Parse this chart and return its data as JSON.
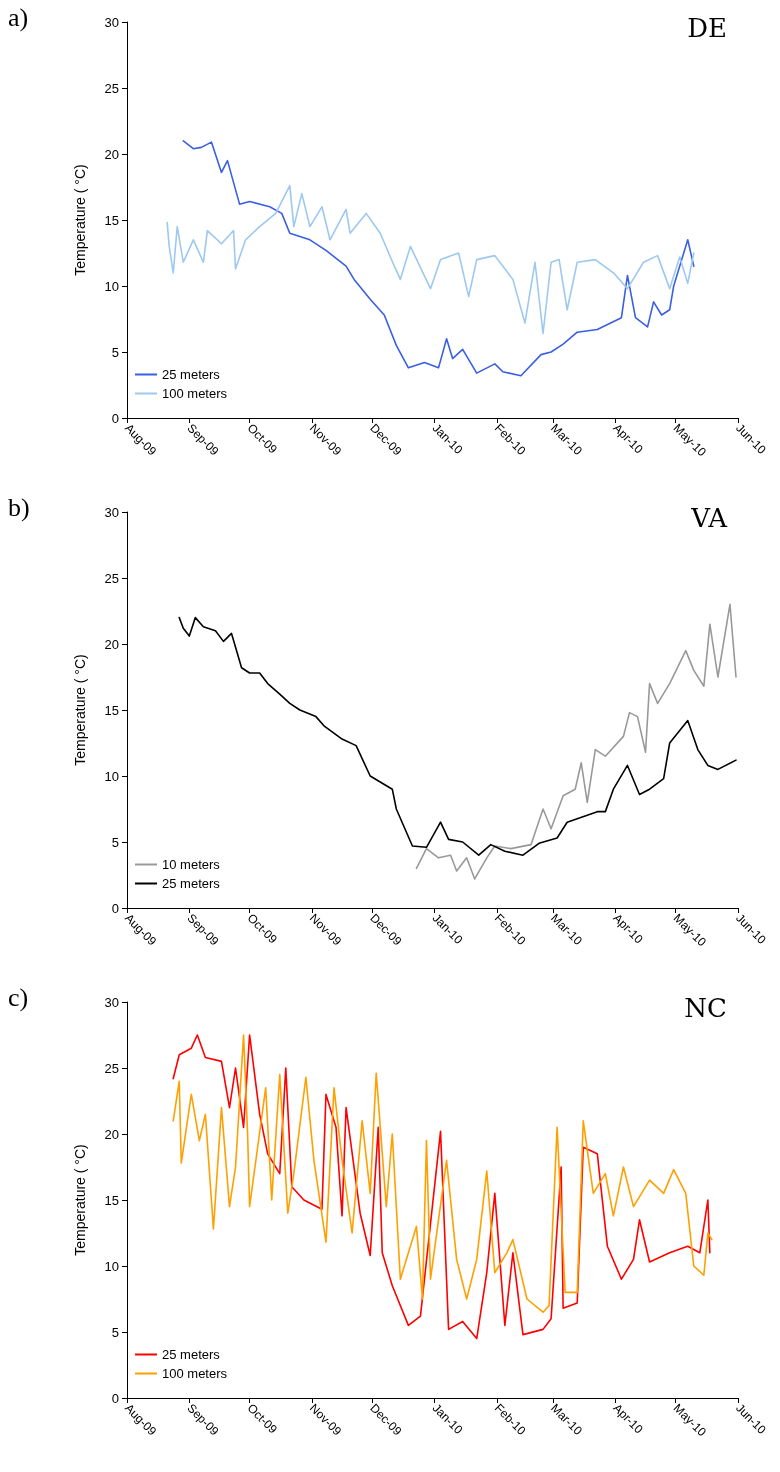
{
  "chart_data": [
    {
      "type": "line",
      "title": "DE",
      "annotations": [
        "a)"
      ],
      "ylabel": "Temperature ( °C)",
      "xlim": [
        "2009-08-01",
        "2010-06-01"
      ],
      "xticks": [
        {
          "value": "2009-08-01",
          "label": "Aug-09"
        },
        {
          "value": "2009-09-01",
          "label": "Sep-09"
        },
        {
          "value": "2009-10-01",
          "label": "Oct-09"
        },
        {
          "value": "2009-11-01",
          "label": "Nov-09"
        },
        {
          "value": "2009-12-01",
          "label": "Dec-09"
        },
        {
          "value": "2010-01-01",
          "label": "Jan-10"
        },
        {
          "value": "2010-02-01",
          "label": "Feb-10"
        },
        {
          "value": "2010-03-01",
          "label": "Mar-10"
        },
        {
          "value": "2010-04-01",
          "label": "Apr-10"
        },
        {
          "value": "2010-05-01",
          "label": "May-10"
        },
        {
          "value": "2010-06-01",
          "label": "Jun-10"
        }
      ],
      "ylim": [
        0,
        30
      ],
      "yticks": [
        0,
        5,
        10,
        15,
        20,
        25,
        30
      ],
      "legend": "bottom left",
      "marker": "none",
      "line_style": "solid",
      "series": [
        {
          "name": "25 meters",
          "color": "#3a5fe0",
          "x": [
            "2009-08-29",
            "2009-09-03",
            "2009-09-07",
            "2009-09-12",
            "2009-09-17",
            "2009-09-20",
            "2009-09-26",
            "2009-10-01",
            "2009-10-11",
            "2009-10-17",
            "2009-10-21",
            "2009-10-31",
            "2009-11-08",
            "2009-11-18",
            "2009-11-22",
            "2009-11-30",
            "2009-12-07",
            "2009-12-13",
            "2009-12-19",
            "2009-12-27",
            "2010-01-03",
            "2010-01-07",
            "2010-01-10",
            "2010-01-15",
            "2010-01-22",
            "2010-01-31",
            "2010-02-04",
            "2010-02-13",
            "2010-02-23",
            "2010-02-28",
            "2010-03-06",
            "2010-03-13",
            "2010-03-23",
            "2010-04-04",
            "2010-04-07",
            "2010-04-11",
            "2010-04-17",
            "2010-04-20",
            "2010-04-24",
            "2010-04-28",
            "2010-04-30",
            "2010-05-07",
            "2010-05-10"
          ],
          "values": [
            21.0,
            20.4,
            20.5,
            20.9,
            18.6,
            19.5,
            16.2,
            16.4,
            16.0,
            15.5,
            14.0,
            13.5,
            12.7,
            11.5,
            10.5,
            9.0,
            7.8,
            5.5,
            3.8,
            4.2,
            3.8,
            6.0,
            4.5,
            5.2,
            3.4,
            4.1,
            3.5,
            3.2,
            4.8,
            5.0,
            5.6,
            6.5,
            6.7,
            7.6,
            10.8,
            7.6,
            6.9,
            8.8,
            7.8,
            8.2,
            10.0,
            13.5,
            11.5
          ]
        },
        {
          "name": "100 meters",
          "color": "#9dc8f0",
          "x": [
            "2009-08-21",
            "2009-08-22",
            "2009-08-24",
            "2009-08-26",
            "2009-08-29",
            "2009-09-03",
            "2009-09-08",
            "2009-09-10",
            "2009-09-17",
            "2009-09-23",
            "2009-09-24",
            "2009-09-29",
            "2009-10-06",
            "2009-10-14",
            "2009-10-21",
            "2009-10-23",
            "2009-10-27",
            "2009-10-31",
            "2009-11-06",
            "2009-11-10",
            "2009-11-18",
            "2009-11-20",
            "2009-11-28",
            "2009-12-05",
            "2009-12-12",
            "2009-12-15",
            "2009-12-20",
            "2009-12-30",
            "2010-01-04",
            "2010-01-13",
            "2010-01-18",
            "2010-01-22",
            "2010-01-31",
            "2010-02-09",
            "2010-02-15",
            "2010-02-20",
            "2010-02-24",
            "2010-02-28",
            "2010-03-04",
            "2010-03-08",
            "2010-03-13",
            "2010-03-22",
            "2010-03-31",
            "2010-04-07",
            "2010-04-15",
            "2010-04-22",
            "2010-04-28",
            "2010-05-03",
            "2010-05-07",
            "2010-05-10"
          ],
          "values": [
            14.8,
            13.0,
            11.0,
            14.5,
            11.8,
            13.5,
            11.8,
            14.2,
            13.2,
            14.2,
            11.3,
            13.5,
            14.5,
            15.5,
            17.6,
            14.5,
            17.0,
            14.5,
            16.0,
            13.5,
            15.8,
            14.0,
            15.5,
            14.0,
            11.5,
            10.5,
            13.0,
            9.8,
            12.0,
            12.5,
            9.2,
            12.0,
            12.3,
            10.5,
            7.2,
            11.8,
            6.4,
            11.8,
            12.0,
            8.2,
            11.8,
            12.0,
            11.0,
            9.8,
            11.8,
            12.3,
            9.8,
            12.2,
            10.2,
            12.5
          ]
        }
      ]
    },
    {
      "type": "line",
      "title": "VA",
      "annotations": [
        "b)"
      ],
      "ylabel": "Temperature ( °C)",
      "xlim": [
        "2009-08-01",
        "2010-06-01"
      ],
      "xticks": [
        {
          "value": "2009-08-01",
          "label": "Aug-09"
        },
        {
          "value": "2009-09-01",
          "label": "Sep-09"
        },
        {
          "value": "2009-10-01",
          "label": "Oct-09"
        },
        {
          "value": "2009-11-01",
          "label": "Nov-09"
        },
        {
          "value": "2009-12-01",
          "label": "Dec-09"
        },
        {
          "value": "2010-01-01",
          "label": "Jan-10"
        },
        {
          "value": "2010-02-01",
          "label": "Feb-10"
        },
        {
          "value": "2010-03-01",
          "label": "Mar-10"
        },
        {
          "value": "2010-04-01",
          "label": "Apr-10"
        },
        {
          "value": "2010-05-01",
          "label": "May-10"
        },
        {
          "value": "2010-06-01",
          "label": "Jun-10"
        }
      ],
      "ylim": [
        0,
        30
      ],
      "yticks": [
        0,
        5,
        10,
        15,
        20,
        25,
        30
      ],
      "legend": "bottom left",
      "marker": "none",
      "line_style": "solid",
      "series": [
        {
          "name": "10 meters",
          "color": "#999999",
          "x": [
            "2009-12-23",
            "2009-12-28",
            "2010-01-03",
            "2010-01-09",
            "2010-01-12",
            "2010-01-17",
            "2010-01-21",
            "2010-01-27",
            "2010-01-31",
            "2010-02-08",
            "2010-02-18",
            "2010-02-24",
            "2010-02-28",
            "2010-03-06",
            "2010-03-12",
            "2010-03-15",
            "2010-03-18",
            "2010-03-22",
            "2010-03-27",
            "2010-04-05",
            "2010-04-08",
            "2010-04-12",
            "2010-04-16",
            "2010-04-18",
            "2010-04-22",
            "2010-04-28",
            "2010-05-06",
            "2010-05-10",
            "2010-05-15",
            "2010-05-18",
            "2010-05-22",
            "2010-05-28",
            "2010-05-31"
          ],
          "values": [
            3.0,
            4.5,
            3.8,
            4.0,
            2.8,
            3.8,
            2.2,
            3.8,
            4.7,
            4.5,
            4.8,
            7.5,
            6.0,
            8.5,
            9.0,
            11.0,
            8.0,
            12.0,
            11.5,
            13.0,
            14.8,
            14.5,
            11.8,
            17.0,
            15.5,
            17.0,
            19.5,
            18.0,
            16.8,
            21.5,
            17.5,
            23.0,
            17.5
          ]
        },
        {
          "name": "25 meters",
          "color": "#000000",
          "x": [
            "2009-08-27",
            "2009-08-29",
            "2009-09-01",
            "2009-09-04",
            "2009-09-08",
            "2009-09-14",
            "2009-09-18",
            "2009-09-22",
            "2009-09-27",
            "2009-10-01",
            "2009-10-06",
            "2009-10-10",
            "2009-10-16",
            "2009-10-21",
            "2009-10-26",
            "2009-11-03",
            "2009-11-07",
            "2009-11-16",
            "2009-11-23",
            "2009-11-30",
            "2009-12-11",
            "2009-12-13",
            "2009-12-21",
            "2009-12-28",
            "2010-01-04",
            "2010-01-08",
            "2010-01-15",
            "2010-01-23",
            "2010-01-29",
            "2010-02-05",
            "2010-02-14",
            "2010-02-22",
            "2010-03-03",
            "2010-03-08",
            "2010-03-23",
            "2010-03-27",
            "2010-03-31",
            "2010-04-07",
            "2010-04-13",
            "2010-04-18",
            "2010-04-25",
            "2010-04-28",
            "2010-05-07",
            "2010-05-12",
            "2010-05-17",
            "2010-05-22",
            "2010-05-31"
          ],
          "values": [
            22.0,
            21.2,
            20.6,
            22.0,
            21.3,
            21.0,
            20.2,
            20.8,
            18.2,
            17.8,
            17.8,
            17.0,
            16.2,
            15.5,
            15.0,
            14.5,
            13.8,
            12.8,
            12.3,
            10.0,
            9.0,
            7.5,
            4.7,
            4.6,
            6.5,
            5.2,
            5.0,
            4.0,
            4.8,
            4.3,
            4.0,
            4.9,
            5.3,
            6.5,
            7.3,
            7.3,
            9.0,
            10.8,
            8.6,
            9.0,
            9.8,
            12.5,
            14.2,
            12.0,
            10.8,
            10.5,
            11.2
          ]
        }
      ]
    },
    {
      "type": "line",
      "title": "NC",
      "annotations": [
        "c)"
      ],
      "ylabel": "Temperature ( °C)",
      "xlim": [
        "2009-08-01",
        "2010-06-01"
      ],
      "xticks": [
        {
          "value": "2009-08-01",
          "label": "Aug-09"
        },
        {
          "value": "2009-09-01",
          "label": "Sep-09"
        },
        {
          "value": "2009-10-01",
          "label": "Oct-09"
        },
        {
          "value": "2009-11-01",
          "label": "Nov-09"
        },
        {
          "value": "2009-12-01",
          "label": "Dec-09"
        },
        {
          "value": "2010-01-01",
          "label": "Jan-10"
        },
        {
          "value": "2010-02-01",
          "label": "Feb-10"
        },
        {
          "value": "2010-03-01",
          "label": "Mar-10"
        },
        {
          "value": "2010-04-01",
          "label": "Apr-10"
        },
        {
          "value": "2010-05-01",
          "label": "May-10"
        },
        {
          "value": "2010-06-01",
          "label": "Jun-10"
        }
      ],
      "ylim": [
        0,
        30
      ],
      "yticks": [
        0,
        5,
        10,
        15,
        20,
        25,
        30
      ],
      "legend": "bottom left",
      "marker": "none",
      "line_style": "solid",
      "series": [
        {
          "name": "25 meters",
          "color": "#ff0000",
          "x": [
            "2009-08-24",
            "2009-08-27",
            "2009-09-02",
            "2009-09-05",
            "2009-09-09",
            "2009-09-17",
            "2009-09-21",
            "2009-09-24",
            "2009-09-28",
            "2009-10-01",
            "2009-10-06",
            "2009-10-10",
            "2009-10-16",
            "2009-10-19",
            "2009-10-22",
            "2009-10-28",
            "2009-11-06",
            "2009-11-08",
            "2009-11-13",
            "2009-11-16",
            "2009-11-18",
            "2009-11-25",
            "2009-11-30",
            "2009-12-04",
            "2009-12-06",
            "2009-12-11",
            "2009-12-19",
            "2009-12-25",
            "2010-01-04",
            "2010-01-08",
            "2010-01-15",
            "2010-01-22",
            "2010-01-27",
            "2010-01-31",
            "2010-02-05",
            "2010-02-09",
            "2010-02-14",
            "2010-02-24",
            "2010-02-28",
            "2010-03-05",
            "2010-03-06",
            "2010-03-13",
            "2010-03-16",
            "2010-03-23",
            "2010-03-28",
            "2010-04-04",
            "2010-04-10",
            "2010-04-13",
            "2010-04-18",
            "2010-04-28",
            "2010-05-07",
            "2010-05-13",
            "2010-05-17",
            "2010-05-18"
          ],
          "values": [
            24.2,
            26.0,
            26.5,
            27.5,
            25.8,
            25.5,
            22.0,
            25.0,
            20.5,
            27.5,
            21.5,
            18.5,
            17.0,
            25.0,
            16.0,
            15.0,
            14.3,
            23.0,
            20.5,
            13.8,
            22.0,
            14.0,
            10.8,
            20.5,
            11.0,
            8.5,
            5.5,
            6.2,
            20.2,
            5.2,
            5.8,
            4.5,
            9.5,
            15.5,
            5.5,
            11.0,
            4.8,
            5.2,
            6.0,
            17.5,
            6.8,
            7.2,
            19.0,
            18.5,
            11.5,
            9.0,
            10.5,
            13.5,
            10.3,
            11.0,
            11.5,
            11.0,
            15.0,
            11.0
          ]
        },
        {
          "name": "100 meters",
          "color": "#ffa000",
          "x": [
            "2009-08-24",
            "2009-08-27",
            "2009-08-28",
            "2009-09-02",
            "2009-09-06",
            "2009-09-09",
            "2009-09-13",
            "2009-09-17",
            "2009-09-21",
            "2009-09-24",
            "2009-09-28",
            "2009-09-30",
            "2009-10-01",
            "2009-10-09",
            "2009-10-12",
            "2009-10-16",
            "2009-10-20",
            "2009-10-23",
            "2009-10-29",
            "2009-11-02",
            "2009-11-08",
            "2009-11-12",
            "2009-11-16",
            "2009-11-21",
            "2009-11-26",
            "2009-11-30",
            "2009-12-03",
            "2009-12-08",
            "2009-12-11",
            "2009-12-15",
            "2009-12-23",
            "2009-12-26",
            "2009-12-28",
            "2009-12-30",
            "2010-01-07",
            "2010-01-12",
            "2010-01-17",
            "2010-01-22",
            "2010-01-27",
            "2010-01-31",
            "2010-02-06",
            "2010-02-09",
            "2010-02-16",
            "2010-02-24",
            "2010-02-27",
            "2010-03-03",
            "2010-03-07",
            "2010-03-13",
            "2010-03-16",
            "2010-03-21",
            "2010-03-27",
            "2010-03-31",
            "2010-04-05",
            "2010-04-10",
            "2010-04-18",
            "2010-04-25",
            "2010-04-30",
            "2010-05-06",
            "2010-05-10",
            "2010-05-15",
            "2010-05-17",
            "2010-05-19"
          ],
          "values": [
            21.0,
            24.0,
            17.8,
            23.0,
            19.5,
            21.5,
            12.8,
            22.0,
            14.5,
            17.5,
            27.5,
            20.0,
            14.5,
            23.5,
            15.0,
            24.5,
            14.0,
            17.0,
            24.3,
            18.0,
            11.8,
            23.5,
            18.0,
            12.5,
            21.0,
            15.5,
            24.6,
            14.5,
            20.0,
            9.0,
            13.0,
            7.5,
            19.5,
            9.0,
            18.0,
            10.5,
            7.5,
            10.5,
            17.2,
            9.5,
            11.0,
            12.0,
            7.5,
            6.5,
            7.0,
            20.5,
            8.0,
            8.0,
            21.0,
            15.5,
            17.0,
            13.8,
            17.5,
            14.5,
            16.5,
            15.5,
            17.3,
            15.5,
            10.0,
            9.3,
            12.5,
            12.0
          ]
        }
      ]
    }
  ]
}
